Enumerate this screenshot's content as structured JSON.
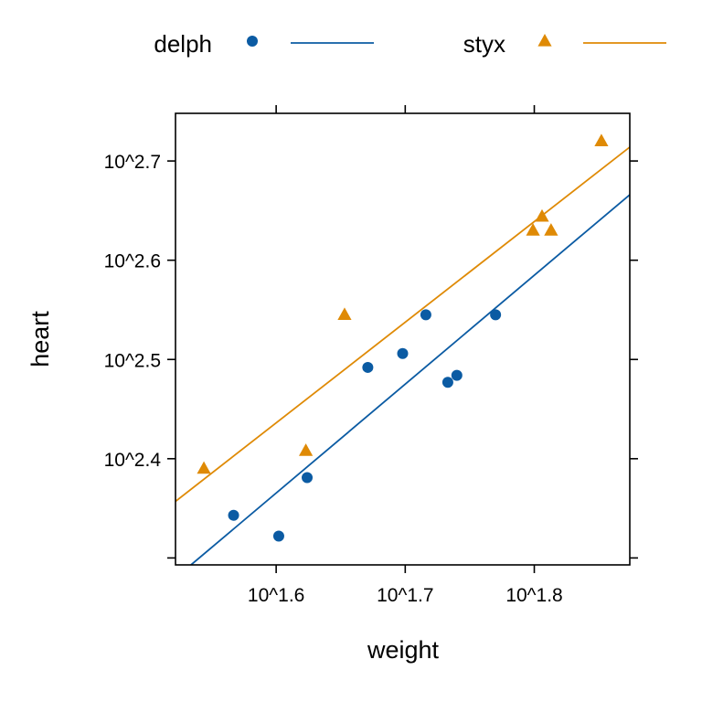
{
  "chart_data": {
    "type": "scatter",
    "xlabel": "weight",
    "ylabel": "heart",
    "x_scale": "log10",
    "y_scale": "log10",
    "xlim": [
      1.522,
      1.874
    ],
    "ylim": [
      2.293,
      2.748
    ],
    "x_ticks": [
      {
        "value": 1.6,
        "label": "10^1.6"
      },
      {
        "value": 1.7,
        "label": "10^1.7"
      },
      {
        "value": 1.8,
        "label": "10^1.8"
      }
    ],
    "y_ticks": [
      {
        "value": 2.3,
        "label": ""
      },
      {
        "value": 2.4,
        "label": "10^2.4"
      },
      {
        "value": 2.5,
        "label": "10^2.5"
      },
      {
        "value": 2.6,
        "label": "10^2.6"
      },
      {
        "value": 2.7,
        "label": "10^2.7"
      }
    ],
    "grid": false,
    "legend_position": "top",
    "series": [
      {
        "name": "delph",
        "color": "#0B5BA3",
        "marker": "circle",
        "points": [
          {
            "x": 1.567,
            "y": 2.343
          },
          {
            "x": 1.602,
            "y": 2.322
          },
          {
            "x": 1.624,
            "y": 2.381
          },
          {
            "x": 1.671,
            "y": 2.492
          },
          {
            "x": 1.698,
            "y": 2.506
          },
          {
            "x": 1.716,
            "y": 2.545
          },
          {
            "x": 1.733,
            "y": 2.477
          },
          {
            "x": 1.74,
            "y": 2.484
          },
          {
            "x": 1.77,
            "y": 2.545
          }
        ],
        "fit_line": {
          "x": [
            1.534,
            1.874
          ],
          "y": [
            2.293,
            2.666
          ]
        }
      },
      {
        "name": "styx",
        "color": "#DF8A05",
        "marker": "triangle",
        "points": [
          {
            "x": 1.544,
            "y": 2.39
          },
          {
            "x": 1.623,
            "y": 2.408
          },
          {
            "x": 1.653,
            "y": 2.545
          },
          {
            "x": 1.799,
            "y": 2.63
          },
          {
            "x": 1.806,
            "y": 2.644
          },
          {
            "x": 1.813,
            "y": 2.63
          },
          {
            "x": 1.852,
            "y": 2.72
          }
        ],
        "fit_line": {
          "x": [
            1.522,
            1.874
          ],
          "y": [
            2.357,
            2.714
          ]
        }
      }
    ]
  }
}
